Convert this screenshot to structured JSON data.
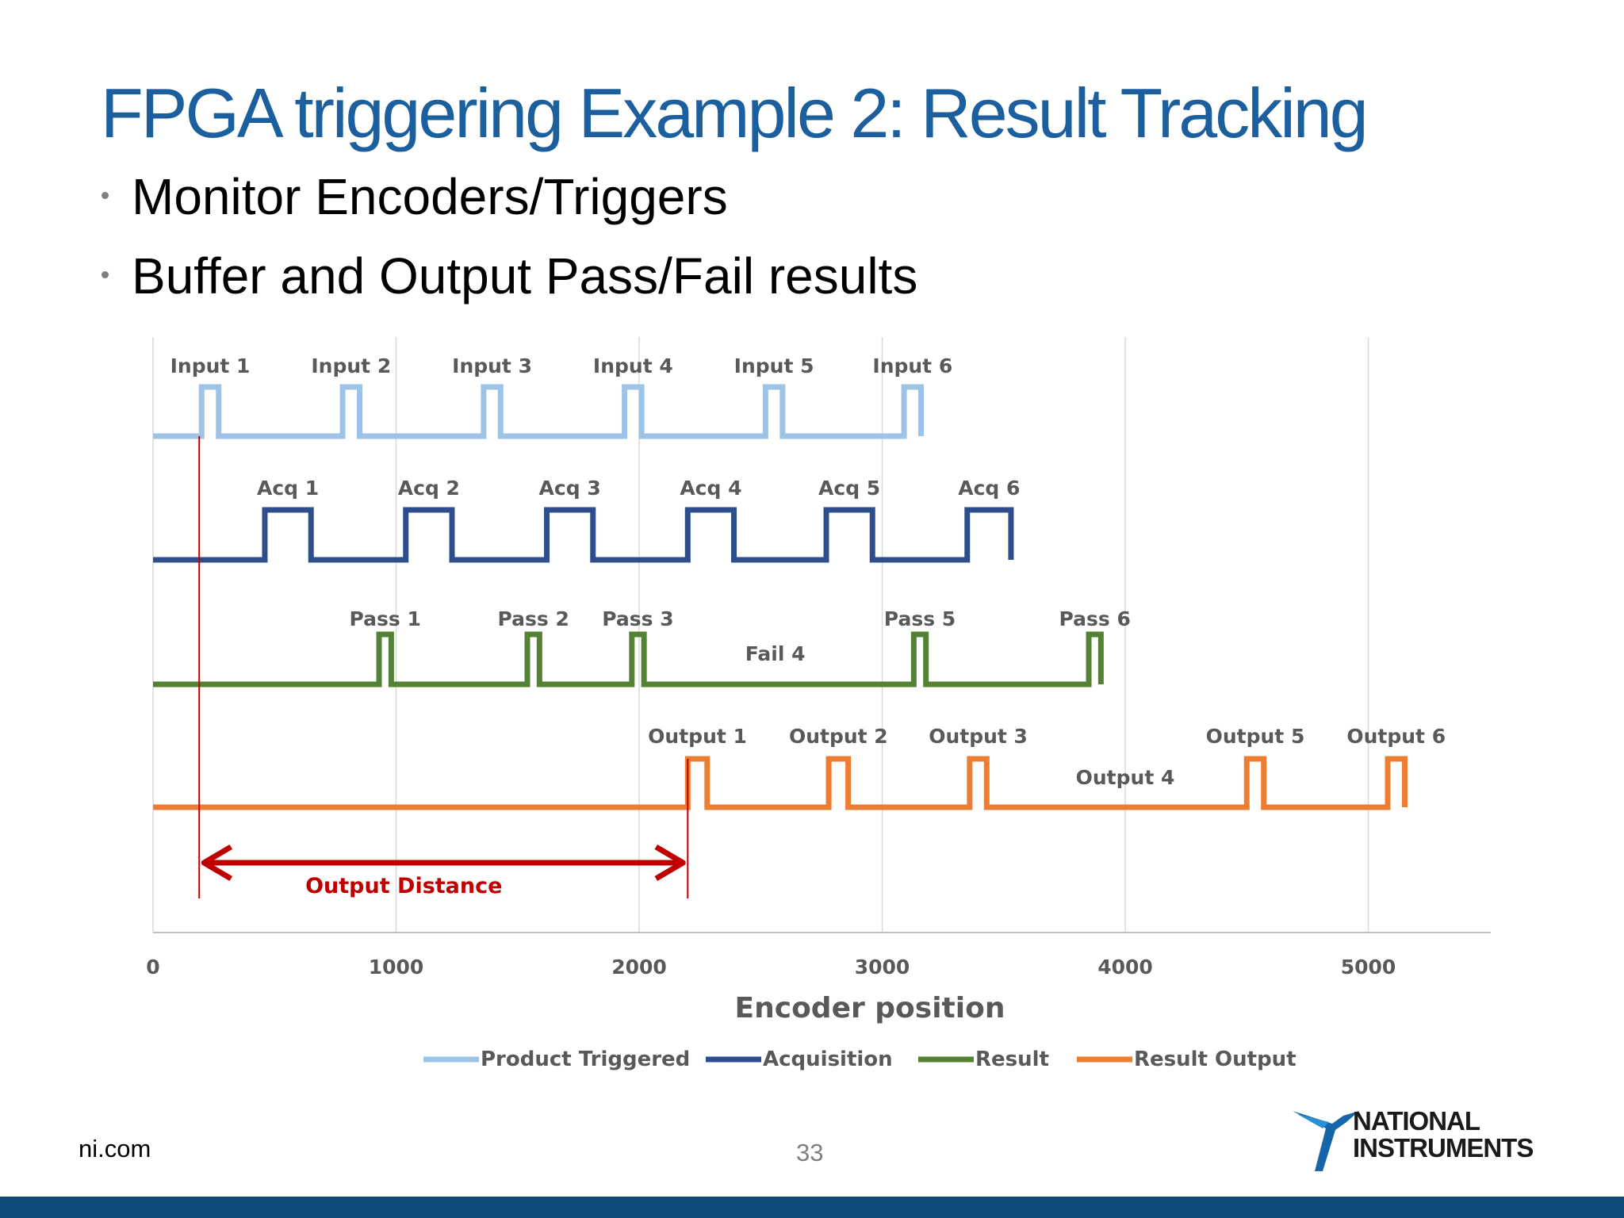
{
  "slide": {
    "title": "FPGA triggering Example 2:  Result Tracking",
    "bullets": [
      "Monitor Encoders/Triggers",
      "Buffer and Output Pass/Fail results"
    ]
  },
  "footer": {
    "site": "ni.com",
    "page_number": "33",
    "logo": {
      "line1": "NATIONAL",
      "line2": "INSTRUMENTS"
    }
  },
  "colors": {
    "title": "#1b5f9e",
    "product_triggered": "#9dc3e6",
    "acquisition": "#2e4d8c",
    "result": "#548235",
    "result_output": "#ed7d31",
    "annotation": "#c00000",
    "bottom_bar": "#0f4a7c"
  },
  "chart_data": {
    "type": "line",
    "step": true,
    "title": "",
    "xlabel": "Encoder position",
    "ylabel": "",
    "xlim": [
      0,
      5500
    ],
    "xticks": [
      0,
      1000,
      2000,
      3000,
      4000,
      5000
    ],
    "grid": "vertical",
    "legend": "bottom",
    "series": [
      {
        "name": "Product Triggered",
        "color": "#9dc3e6",
        "start": 0,
        "end": 3160,
        "pulses": [
          {
            "from": 200,
            "to": 270,
            "label": "Input 1"
          },
          {
            "from": 780,
            "to": 850,
            "label": "Input 2"
          },
          {
            "from": 1360,
            "to": 1430,
            "label": "Input 3"
          },
          {
            "from": 1940,
            "to": 2010,
            "label": "Input 4"
          },
          {
            "from": 2520,
            "to": 2590,
            "label": "Input 5"
          },
          {
            "from": 3090,
            "to": 3160,
            "label": "Input 6"
          }
        ]
      },
      {
        "name": "Acquisition",
        "color": "#2e4d8c",
        "start": 0,
        "end": 3530,
        "pulses": [
          {
            "from": 460,
            "to": 650,
            "label": "Acq 1"
          },
          {
            "from": 1040,
            "to": 1230,
            "label": "Acq 2"
          },
          {
            "from": 1620,
            "to": 1810,
            "label": "Acq 3"
          },
          {
            "from": 2200,
            "to": 2390,
            "label": "Acq 4"
          },
          {
            "from": 2770,
            "to": 2960,
            "label": "Acq 5"
          },
          {
            "from": 3350,
            "to": 3530,
            "label": "Acq 6"
          }
        ]
      },
      {
        "name": "Result",
        "color": "#548235",
        "start": 0,
        "end": 3900,
        "pulses": [
          {
            "from": 930,
            "to": 980,
            "label": "Pass 1"
          },
          {
            "from": 1540,
            "to": 1590,
            "label": "Pass 2"
          },
          {
            "from": 1970,
            "to": 2020,
            "label": "Pass 3"
          },
          {
            "from": 3130,
            "to": 3180,
            "label": "Pass 5"
          },
          {
            "from": 3850,
            "to": 3900,
            "label": "Pass 6"
          }
        ],
        "annotations": [
          {
            "x": 2560,
            "label": "Fail 4"
          }
        ]
      },
      {
        "name": "Result Output",
        "color": "#ed7d31",
        "start": 0,
        "end": 5150,
        "pulses": [
          {
            "from": 2200,
            "to": 2280,
            "label": "Output 1"
          },
          {
            "from": 2780,
            "to": 2860,
            "label": "Output 2"
          },
          {
            "from": 3360,
            "to": 3430,
            "label": "Output 3"
          },
          {
            "from": 4500,
            "to": 4570,
            "label": "Output 5"
          },
          {
            "from": 5080,
            "to": 5150,
            "label": "Output 6"
          }
        ],
        "annotations": [
          {
            "x": 4000,
            "label": "Output 4"
          }
        ]
      }
    ],
    "distance_marker": {
      "from": 190,
      "to": 2200,
      "label": "Output Distance"
    }
  }
}
